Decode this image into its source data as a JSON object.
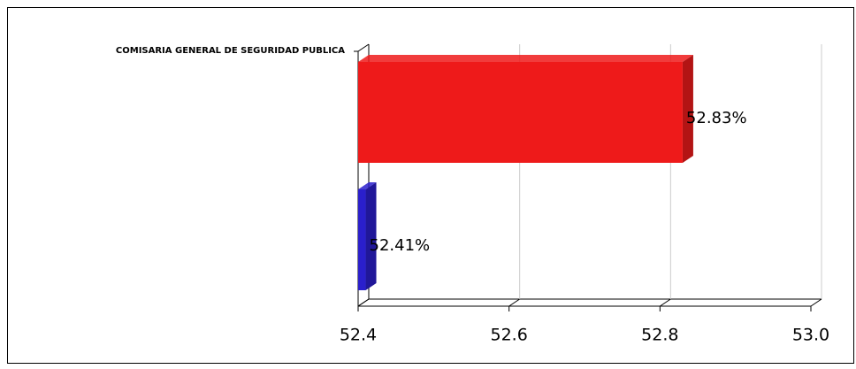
{
  "chart_data": {
    "type": "bar3d_horizontal",
    "categories": [
      "COMISARIA GENERAL DE SEGURIDAD PUBLICA"
    ],
    "series": [
      {
        "color": "#ee1a1a",
        "values": [
          52.83
        ],
        "value_labels": [
          "52.83%"
        ]
      },
      {
        "color": "#2a1fcc",
        "values": [
          52.41
        ],
        "value_labels": [
          "52.41%"
        ]
      }
    ],
    "xlim": [
      52.4,
      53.0
    ],
    "xticks": [
      52.4,
      52.6,
      52.8,
      {
        "value": 53.0,
        "label": "53.0"
      }
    ],
    "grid": true
  }
}
